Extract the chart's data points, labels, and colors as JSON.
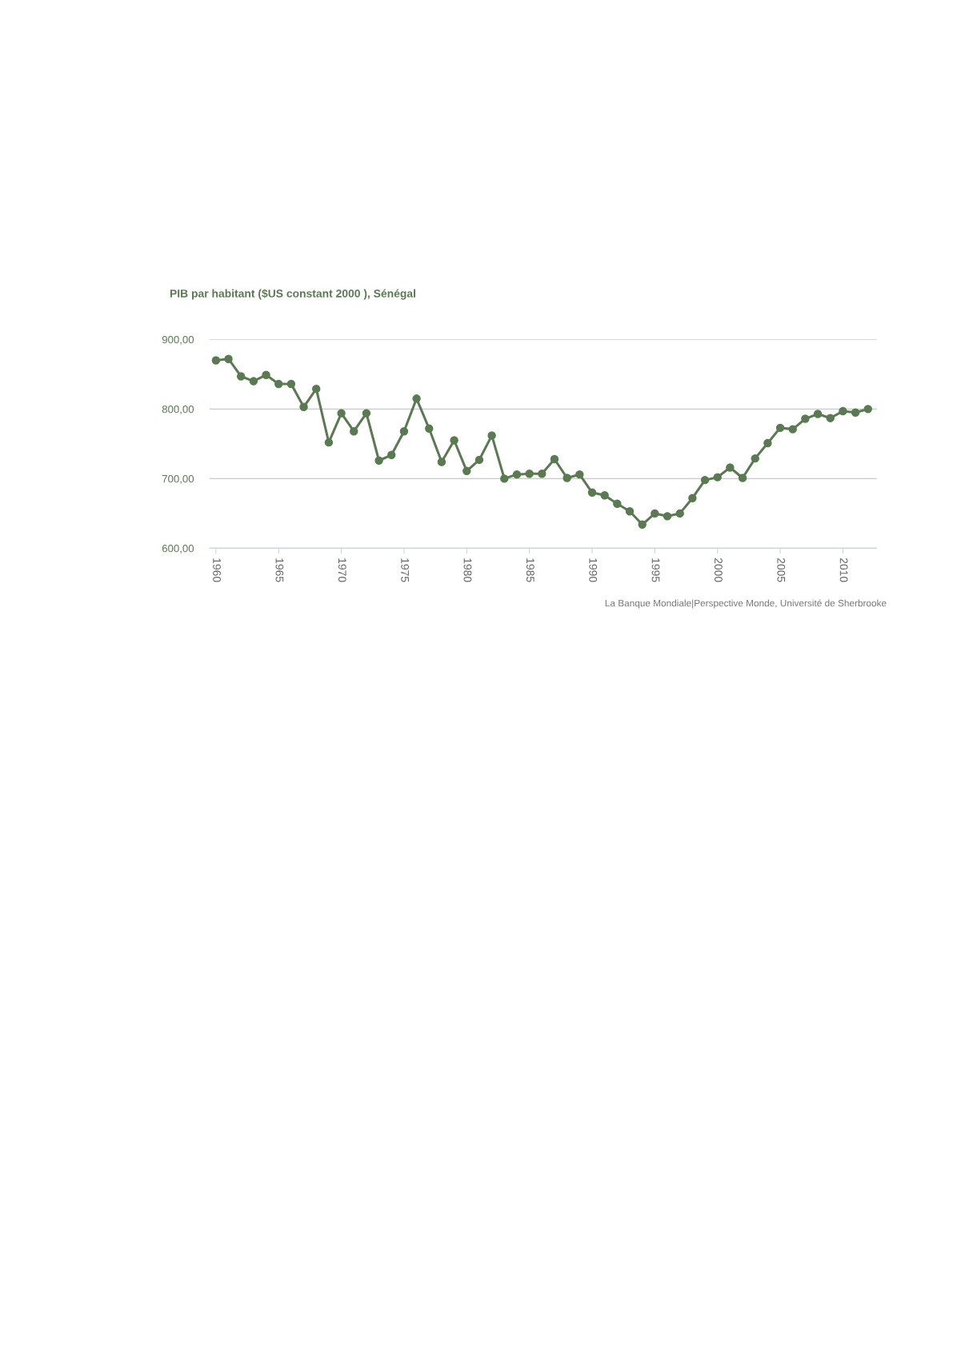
{
  "chart_data": {
    "type": "line",
    "title": "PIB par habitant ($US constant 2000 ), Sénégal",
    "x": [
      1960,
      1961,
      1962,
      1963,
      1964,
      1965,
      1966,
      1967,
      1968,
      1969,
      1970,
      1971,
      1972,
      1973,
      1974,
      1975,
      1976,
      1977,
      1978,
      1979,
      1980,
      1981,
      1982,
      1983,
      1984,
      1985,
      1986,
      1987,
      1988,
      1989,
      1990,
      1991,
      1992,
      1993,
      1994,
      1995,
      1996,
      1997,
      1998,
      1999,
      2000,
      2001,
      2002,
      2003,
      2004,
      2005,
      2006,
      2007,
      2008,
      2009,
      2010,
      2011,
      2012
    ],
    "series": [
      {
        "color": "#5a7a52",
        "values": [
          870,
          872,
          847,
          840,
          849,
          836,
          836,
          803,
          829,
          752,
          794,
          768,
          794,
          726,
          734,
          768,
          815,
          772,
          724,
          755,
          711,
          727,
          762,
          700,
          706,
          707,
          707,
          728,
          701,
          706,
          680,
          676,
          664,
          653,
          634,
          650,
          646,
          650,
          672,
          698,
          702,
          716,
          701,
          729,
          751,
          773,
          771,
          786,
          793,
          787,
          797,
          795,
          800
        ]
      }
    ],
    "xlim": [
      1959.5,
      2012.7
    ],
    "xticks": [
      1960,
      1965,
      1970,
      1975,
      1980,
      1985,
      1990,
      1995,
      2000,
      2005,
      2010
    ],
    "ylim": [
      600,
      900
    ],
    "yticks": [
      {
        "value": 600,
        "label": "600,00"
      },
      {
        "value": 700,
        "label": "700,00"
      },
      {
        "value": 800,
        "label": "800,00"
      },
      {
        "value": 900,
        "label": "900,00"
      }
    ],
    "grid": "y",
    "marker": "circle",
    "line_style": "solid",
    "legend": false,
    "annotations": [
      "La Banque Mondiale|Perspective Monde, Université de Sherbrooke"
    ]
  }
}
